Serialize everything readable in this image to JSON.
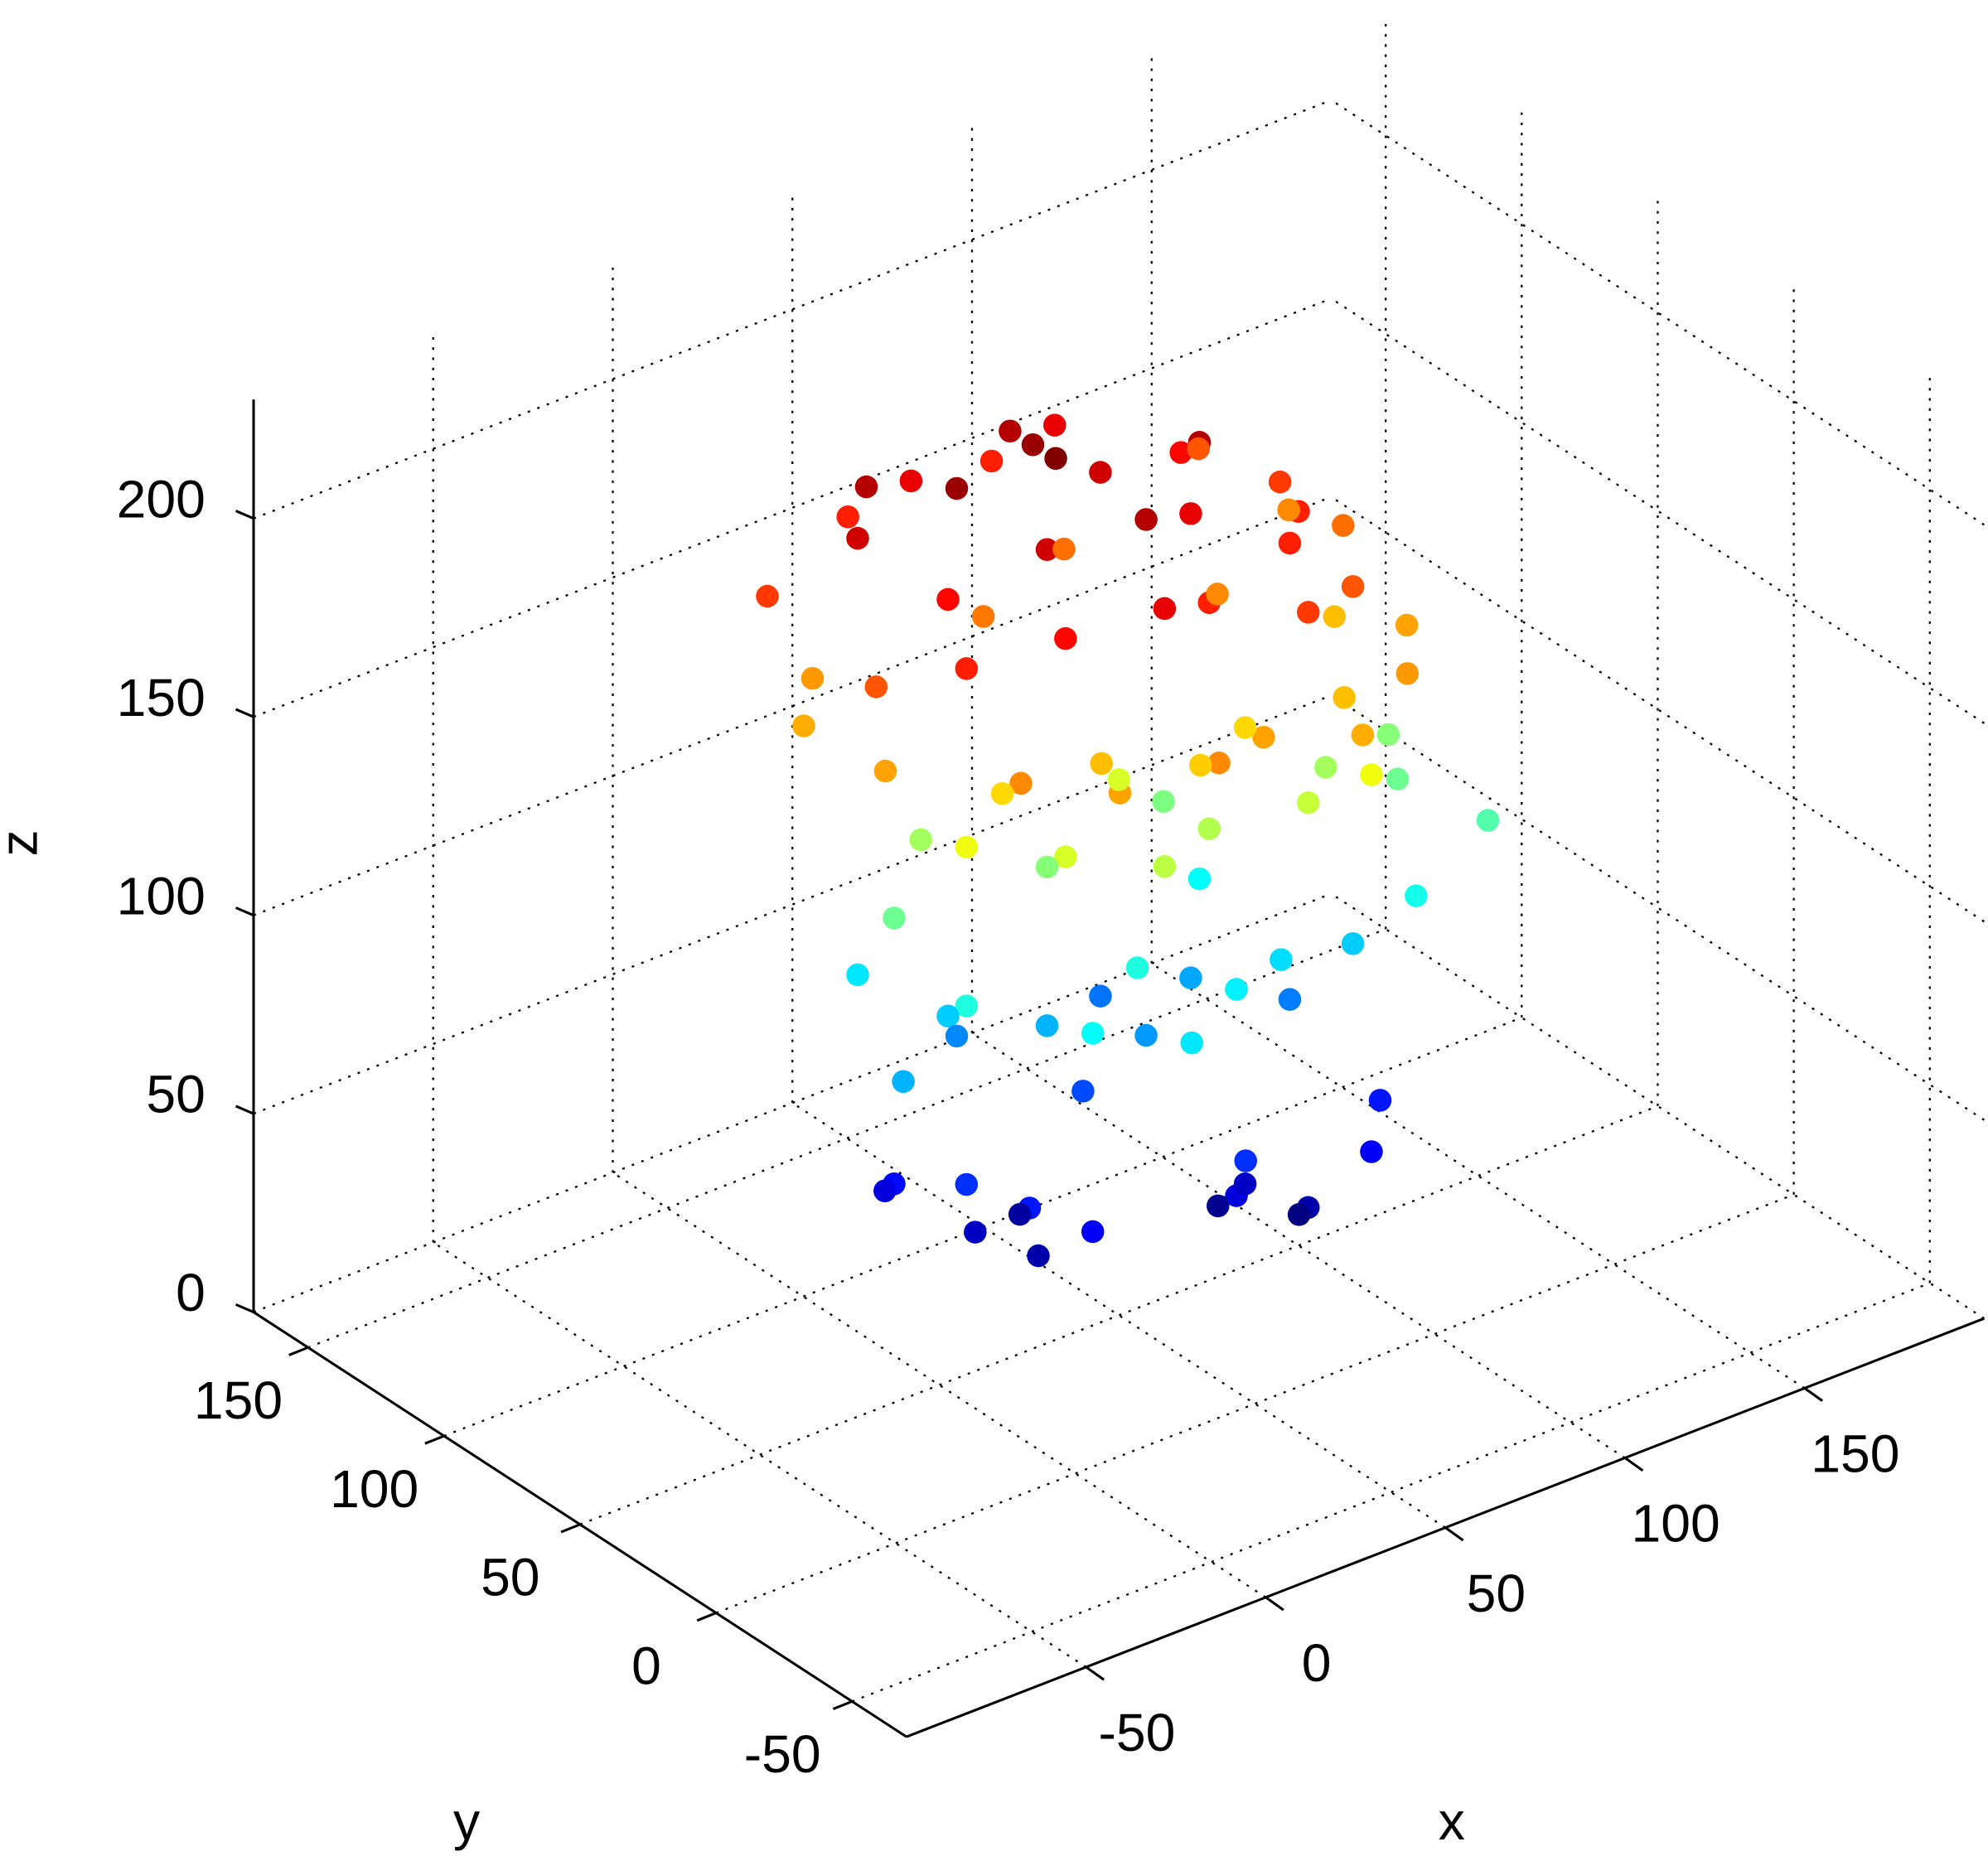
{
  "chart_data": {
    "type": "scatter3d",
    "x_label": "x",
    "y_label": "y",
    "z_label": "z",
    "xlim": [
      -100,
      200
    ],
    "ylim": [
      -70,
      170
    ],
    "zlim": [
      0,
      230
    ],
    "xticks": [
      -50,
      0,
      50,
      100,
      150
    ],
    "yticks": [
      -50,
      0,
      50,
      100,
      150
    ],
    "zticks": [
      0,
      50,
      100,
      150,
      200
    ],
    "grid": true,
    "colormap": "jet",
    "series": [
      {
        "x": [
          0,
          10,
          20,
          30,
          40,
          50,
          60,
          70,
          80,
          90,
          100,
          110,
          0,
          20,
          40,
          60,
          80,
          100,
          10,
          30,
          50,
          70,
          90,
          -10,
          -10,
          20,
          60,
          110,
          120,
          45,
          -15,
          0,
          20,
          40,
          60,
          80,
          100,
          115,
          120,
          -5,
          30,
          50,
          70,
          90,
          10,
          110,
          -15,
          85,
          35,
          65,
          0,
          20,
          40,
          60,
          80,
          100,
          120,
          130,
          125,
          10,
          30,
          70,
          -5,
          50,
          90,
          0,
          20,
          40,
          60,
          80,
          100,
          10,
          30,
          50,
          70,
          90,
          0,
          -10,
          20,
          60,
          40,
          80,
          110,
          0,
          10,
          20,
          -5,
          0,
          10,
          20,
          30,
          60,
          70,
          80,
          90,
          100,
          70,
          85,
          40,
          55
        ],
        "y": [
          80,
          90,
          70,
          100,
          60,
          90,
          70,
          100,
          60,
          80,
          50,
          70,
          40,
          30,
          20,
          30,
          20,
          30,
          60,
          50,
          40,
          50,
          40,
          60,
          100,
          110,
          110,
          100,
          60,
          75,
          50,
          20,
          10,
          0,
          10,
          0,
          10,
          30,
          80,
          90,
          30,
          20,
          30,
          20,
          40,
          50,
          80,
          60,
          80,
          90,
          40,
          30,
          20,
          30,
          20,
          40,
          40,
          20,
          50,
          70,
          50,
          60,
          60,
          50,
          10,
          40,
          20,
          10,
          20,
          30,
          30,
          60,
          50,
          40,
          50,
          40,
          80,
          50,
          70,
          70,
          30,
          60,
          20,
          40,
          30,
          20,
          60,
          70,
          50,
          40,
          60,
          20,
          30,
          20,
          10,
          20,
          40,
          30,
          50,
          10
        ],
        "z": [
          200,
          205,
          210,
          195,
          215,
          205,
          200,
          195,
          205,
          190,
          185,
          180,
          185,
          190,
          195,
          185,
          180,
          175,
          190,
          200,
          205,
          195,
          185,
          175,
          180,
          185,
          185,
          175,
          170,
          210,
          160,
          165,
          160,
          165,
          160,
          158,
          162,
          160,
          165,
          162,
          155,
          152,
          150,
          155,
          150,
          155,
          158,
          165,
          168,
          170,
          140,
          135,
          130,
          128,
          132,
          125,
          115,
          110,
          120,
          125,
          120,
          118,
          115,
          135,
          140,
          100,
          95,
          90,
          92,
          88,
          85,
          85,
          80,
          75,
          78,
          70,
          90,
          80,
          72,
          68,
          100,
          95,
          98,
          55,
          50,
          45,
          48,
          40,
          35,
          30,
          28,
          40,
          35,
          30,
          45,
          50,
          25,
          22,
          60,
          55
        ]
      }
    ]
  }
}
